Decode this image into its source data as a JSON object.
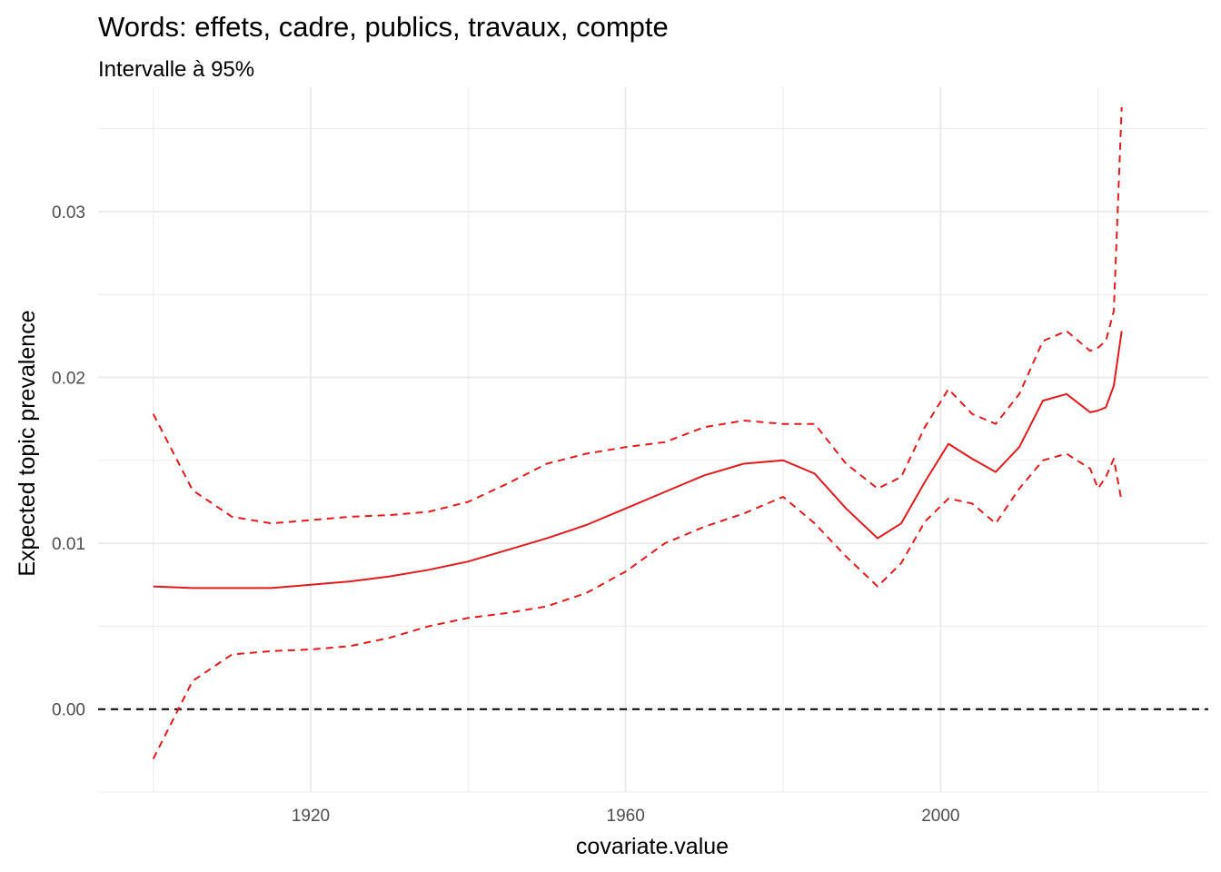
{
  "chart_data": {
    "type": "line",
    "title": "Words: effets, cadre, publics, travaux, compte",
    "subtitle": "Intervalle à 95%",
    "xlabel": "covariate.value",
    "ylabel": "Expected topic prevalence",
    "xlim": [
      1893,
      2034
    ],
    "ylim": [
      -0.005,
      0.0375
    ],
    "x_ticks": [
      1920,
      1960,
      2000
    ],
    "x_minor_ticks": [
      1900,
      1940,
      1980,
      2020
    ],
    "y_ticks": [
      0.0,
      0.01,
      0.02,
      0.03
    ],
    "y_tick_labels": [
      "0.00",
      "0.01",
      "0.02",
      "0.03"
    ],
    "y_minor_ticks": [
      -0.005,
      0.005,
      0.015,
      0.025,
      0.035
    ],
    "reference_line": 0,
    "grid": true,
    "colors": {
      "series": "#e31a1c",
      "reference": "#000000",
      "grid": "#ebebeb"
    },
    "x": [
      1900,
      1905,
      1910,
      1915,
      1920,
      1925,
      1930,
      1935,
      1940,
      1945,
      1950,
      1955,
      1960,
      1965,
      1970,
      1975,
      1980,
      1984,
      1988,
      1992,
      1995,
      1998,
      2001,
      2004,
      2007,
      2010,
      2013,
      2016,
      2019,
      2020,
      2021,
      2022,
      2023
    ],
    "series": [
      {
        "values": [
          0.0074,
          0.0073,
          0.0073,
          0.0073,
          0.0075,
          0.0077,
          0.008,
          0.0084,
          0.0089,
          0.0096,
          0.0103,
          0.0111,
          0.0121,
          0.0131,
          0.0141,
          0.0148,
          0.015,
          0.0142,
          0.0121,
          0.0103,
          0.0112,
          0.0137,
          0.016,
          0.0151,
          0.0143,
          0.0158,
          0.0186,
          0.019,
          0.0179,
          0.018,
          0.0182,
          0.0195,
          0.0228
        ],
        "style": "solid"
      },
      {
        "values": [
          0.0178,
          0.0132,
          0.0116,
          0.0112,
          0.0114,
          0.0116,
          0.0117,
          0.0119,
          0.0125,
          0.0136,
          0.0148,
          0.0154,
          0.0158,
          0.0161,
          0.017,
          0.0174,
          0.0172,
          0.0172,
          0.0148,
          0.0133,
          0.014,
          0.017,
          0.0193,
          0.0178,
          0.0172,
          0.019,
          0.0222,
          0.0228,
          0.0216,
          0.0218,
          0.0222,
          0.024,
          0.0363
        ],
        "style": "dashed"
      },
      {
        "values": [
          -0.003,
          0.0017,
          0.0033,
          0.0035,
          0.0036,
          0.0038,
          0.0043,
          0.005,
          0.0055,
          0.0058,
          0.0062,
          0.007,
          0.0083,
          0.01,
          0.011,
          0.0118,
          0.0128,
          0.0112,
          0.0092,
          0.0074,
          0.0088,
          0.0113,
          0.0127,
          0.0124,
          0.0112,
          0.0133,
          0.015,
          0.0154,
          0.0145,
          0.0133,
          0.014,
          0.0151,
          0.0125
        ],
        "style": "dashed"
      }
    ]
  }
}
